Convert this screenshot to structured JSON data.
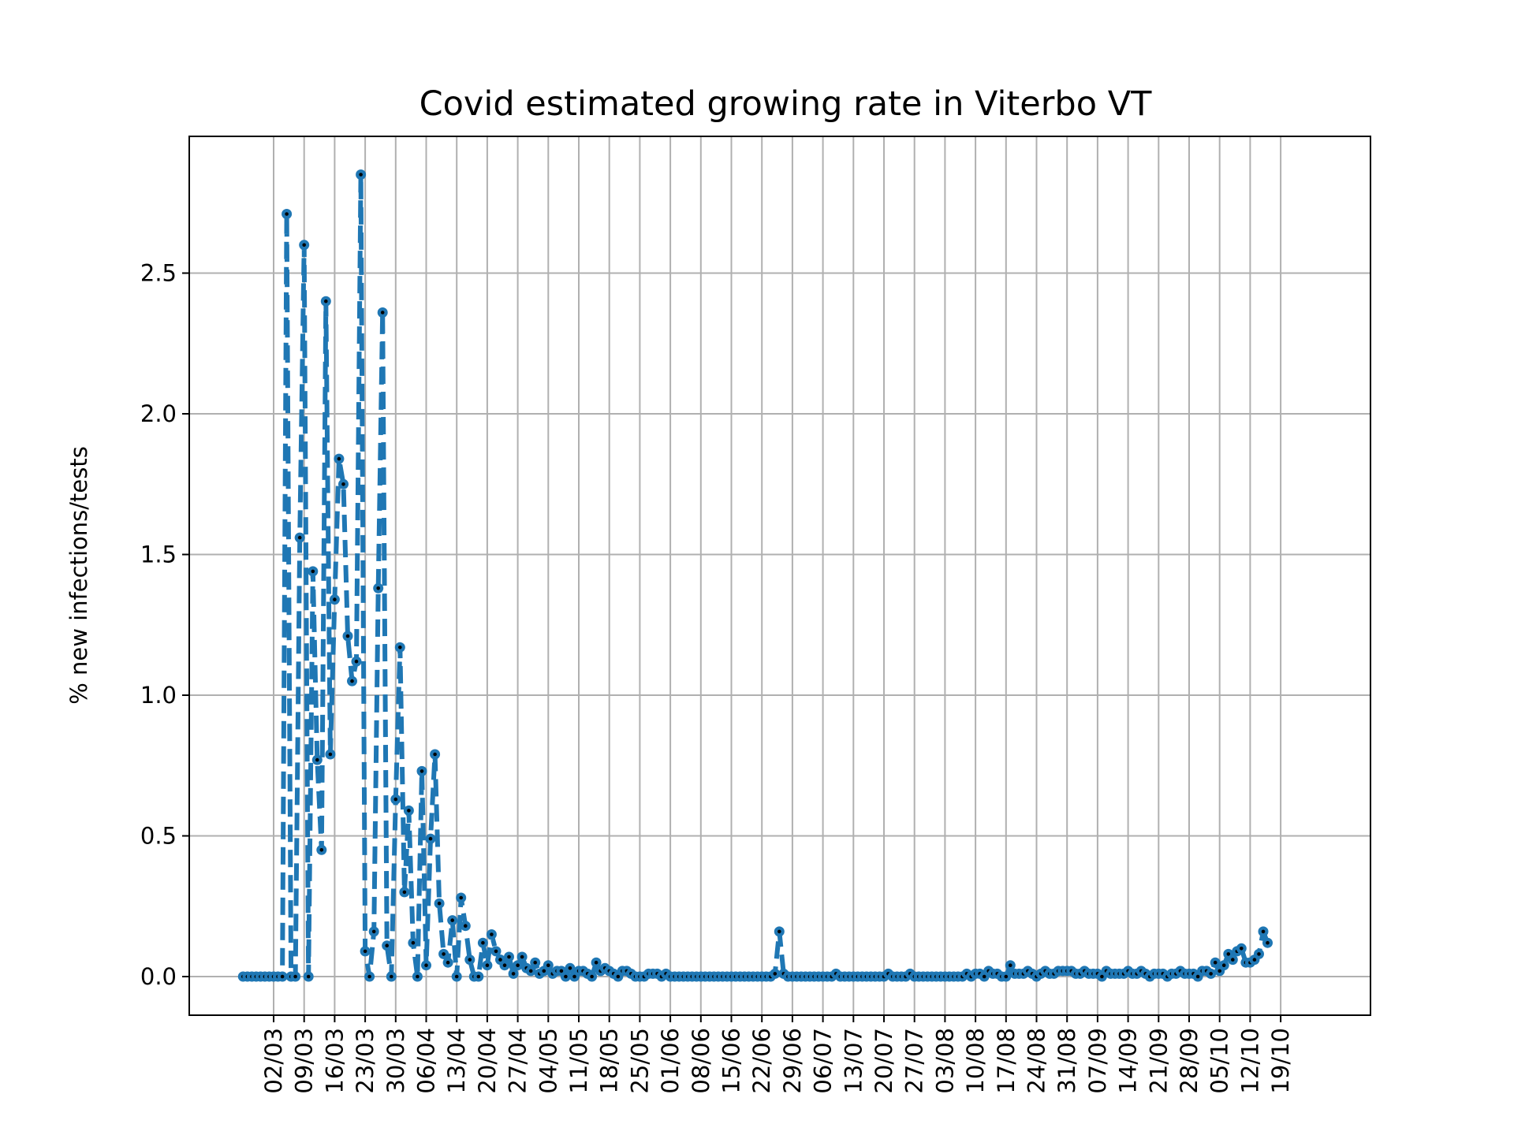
{
  "chart_data": {
    "type": "line",
    "title": "Covid estimated growing rate in Viterbo VT",
    "xlabel": "",
    "ylabel": "% new infections/tests",
    "ylim": [
      -0.14,
      2.98
    ],
    "yticks": [
      0.0,
      0.5,
      1.0,
      1.5,
      2.0,
      2.5
    ],
    "ytick_labels": [
      "0.0",
      "0.5",
      "1.0",
      "1.5",
      "2.0",
      "2.5"
    ],
    "x_start_date": "2020-02-24",
    "x_end_date": "2020-10-20",
    "xticks": [
      "2020-03-02",
      "2020-03-09",
      "2020-03-16",
      "2020-03-23",
      "2020-03-30",
      "2020-04-06",
      "2020-04-13",
      "2020-04-20",
      "2020-04-27",
      "2020-05-04",
      "2020-05-11",
      "2020-05-18",
      "2020-05-25",
      "2020-06-01",
      "2020-06-08",
      "2020-06-15",
      "2020-06-22",
      "2020-06-29",
      "2020-07-06",
      "2020-07-13",
      "2020-07-20",
      "2020-07-27",
      "2020-08-03",
      "2020-08-10",
      "2020-08-17",
      "2020-08-24",
      "2020-08-31",
      "2020-09-07",
      "2020-09-14",
      "2020-09-21",
      "2020-09-28",
      "2020-10-05",
      "2020-10-12",
      "2020-10-19"
    ],
    "xtick_labels": [
      "02/03",
      "09/03",
      "16/03",
      "23/03",
      "30/03",
      "06/04",
      "13/04",
      "20/04",
      "27/04",
      "04/05",
      "11/05",
      "18/05",
      "25/05",
      "01/06",
      "08/06",
      "15/06",
      "22/06",
      "29/06",
      "06/07",
      "13/07",
      "20/07",
      "27/07",
      "03/08",
      "10/08",
      "17/08",
      "24/08",
      "31/08",
      "07/09",
      "14/09",
      "21/09",
      "28/09",
      "05/10",
      "12/10",
      "19/10"
    ],
    "grid": true,
    "series": [
      {
        "name": "",
        "color": "#1f77b4",
        "marker_color": "#000000",
        "linestyle": "dashed",
        "values": [
          0,
          0,
          0,
          0,
          0,
          0,
          0,
          0,
          0,
          0,
          2.71,
          0,
          0,
          1.56,
          2.6,
          0,
          1.44,
          0.77,
          0.45,
          2.4,
          0.79,
          1.34,
          1.84,
          1.75,
          1.21,
          1.05,
          1.12,
          2.85,
          0.09,
          0,
          0.16,
          1.38,
          2.36,
          0.11,
          0,
          0.63,
          1.17,
          0.3,
          0.59,
          0.12,
          0,
          0.73,
          0.04,
          0.49,
          0.79,
          0.26,
          0.08,
          0.05,
          0.2,
          0,
          0.28,
          0.18,
          0.06,
          0,
          0,
          0.12,
          0.04,
          0.15,
          0.09,
          0.06,
          0.04,
          0.07,
          0.01,
          0.04,
          0.07,
          0.03,
          0.02,
          0.05,
          0.01,
          0.02,
          0.04,
          0.01,
          0.02,
          0.02,
          0,
          0.03,
          0,
          0.02,
          0.02,
          0.01,
          0,
          0.05,
          0.02,
          0.03,
          0.02,
          0.01,
          0,
          0.02,
          0.02,
          0.01,
          0,
          0,
          0,
          0.01,
          0.01,
          0.01,
          0,
          0.01,
          0,
          0,
          0,
          0,
          0,
          0,
          0,
          0,
          0,
          0,
          0,
          0,
          0,
          0,
          0,
          0,
          0,
          0,
          0,
          0,
          0,
          0,
          0,
          0,
          0.01,
          0.16,
          0.01,
          0,
          0,
          0,
          0,
          0,
          0,
          0,
          0,
          0,
          0,
          0,
          0.01,
          0,
          0,
          0,
          0,
          0,
          0,
          0,
          0,
          0,
          0,
          0,
          0.01,
          0,
          0,
          0,
          0,
          0.01,
          0,
          0,
          0,
          0,
          0,
          0,
          0,
          0,
          0,
          0,
          0,
          0,
          0.01,
          0,
          0.01,
          0.01,
          0,
          0.02,
          0.01,
          0.01,
          0,
          0,
          0.04,
          0.01,
          0.01,
          0.01,
          0.02,
          0.01,
          0,
          0.01,
          0.02,
          0.01,
          0.01,
          0.02,
          0.02,
          0.02,
          0.02,
          0.01,
          0.01,
          0.02,
          0.01,
          0.01,
          0.01,
          0,
          0.02,
          0.01,
          0.01,
          0.01,
          0.01,
          0.02,
          0.01,
          0.01,
          0.02,
          0.01,
          0,
          0.01,
          0.01,
          0.01,
          0,
          0.01,
          0.01,
          0.02,
          0.01,
          0.01,
          0.01,
          0,
          0.02,
          0.02,
          0.01,
          0.05,
          0.02,
          0.04,
          0.08,
          0.06,
          0.09,
          0.1,
          0.05,
          0.05,
          0.06,
          0.08,
          0.16,
          0.12
        ]
      }
    ]
  }
}
